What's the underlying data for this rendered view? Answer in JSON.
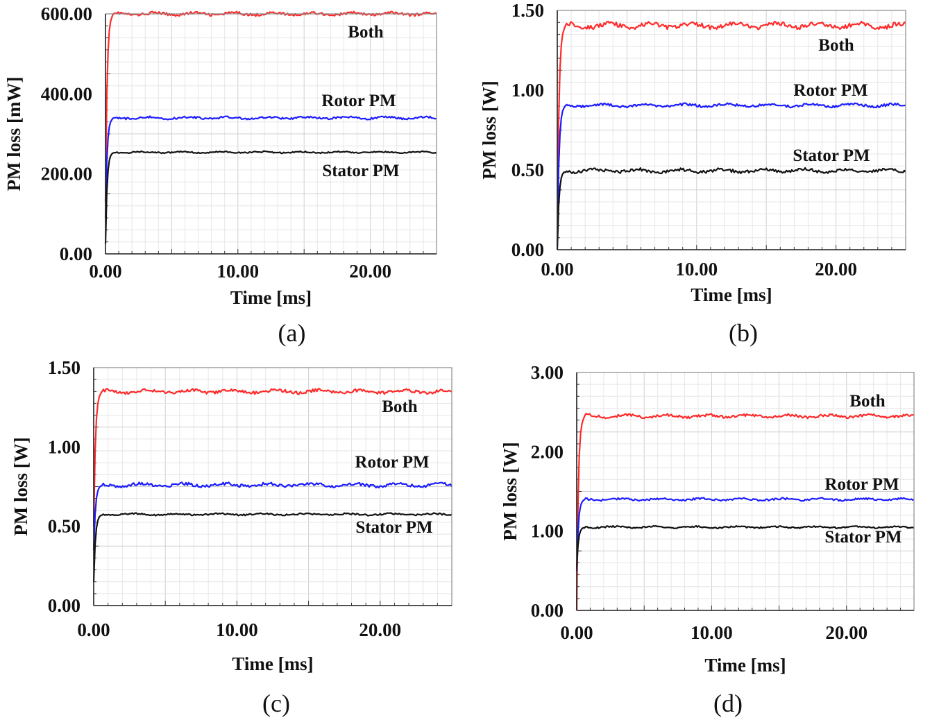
{
  "chart_data": [
    {
      "id": "a",
      "type": "line",
      "caption": "(a)",
      "xlabel": "Time [ms]",
      "ylabel": "PM loss [mW]",
      "xlim": [
        0,
        25
      ],
      "ylim": [
        0,
        600
      ],
      "xticks": [
        0,
        10,
        20
      ],
      "yticks": [
        0,
        200,
        400,
        600
      ],
      "grid": true,
      "series": [
        {
          "name": "Both",
          "color": "#ff2a2a",
          "steady": 600,
          "start": 130,
          "ripple": 4
        },
        {
          "name": "Rotor PM",
          "color": "#1c1cff",
          "steady": 340,
          "start": 90,
          "ripple": 3
        },
        {
          "name": "Stator PM",
          "color": "#111111",
          "steady": 254,
          "start": 25,
          "ripple": 2
        }
      ],
      "labels": [
        {
          "text": "Both",
          "series": "Both"
        },
        {
          "text": "Rotor PM",
          "series": "Rotor PM"
        },
        {
          "text": "Stator PM",
          "series": "Stator PM"
        }
      ]
    },
    {
      "id": "b",
      "type": "line",
      "caption": "(b)",
      "xlabel": "Time [ms]",
      "ylabel": "PM loss [W]",
      "xlim": [
        0,
        25
      ],
      "ylim": [
        0,
        1.5
      ],
      "xticks": [
        0,
        10,
        20
      ],
      "yticks": [
        0,
        0.5,
        1,
        1.5
      ],
      "grid": true,
      "series": [
        {
          "name": "Both",
          "color": "#ff2a2a",
          "steady": 1.405,
          "start": 0.05,
          "ripple": 0.018
        },
        {
          "name": "Rotor PM",
          "color": "#1c1cff",
          "steady": 0.905,
          "start": 0.02,
          "ripple": 0.01
        },
        {
          "name": "Stator PM",
          "color": "#111111",
          "steady": 0.495,
          "start": 0.0,
          "ripple": 0.012
        }
      ],
      "labels": [
        {
          "text": "Both",
          "series": "Both"
        },
        {
          "text": "Rotor PM",
          "series": "Rotor PM"
        },
        {
          "text": "Stator PM",
          "series": "Stator PM"
        }
      ]
    },
    {
      "id": "c",
      "type": "line",
      "caption": "(c)",
      "xlabel": "Time [ms]",
      "ylabel": "PM loss [W]",
      "xlim": [
        0,
        25
      ],
      "ylim": [
        0,
        1.5
      ],
      "xticks": [
        0,
        10,
        20
      ],
      "yticks": [
        0,
        0.5,
        1,
        1.5
      ],
      "grid": true,
      "series": [
        {
          "name": "Both",
          "color": "#ff2a2a",
          "steady": 1.35,
          "start": 0.5,
          "ripple": 0.012
        },
        {
          "name": "Rotor PM",
          "color": "#1c1cff",
          "steady": 0.76,
          "start": 0.35,
          "ripple": 0.012
        },
        {
          "name": "Stator PM",
          "color": "#111111",
          "steady": 0.575,
          "start": 0.15,
          "ripple": 0.006
        }
      ],
      "labels": [
        {
          "text": "Both",
          "series": "Both"
        },
        {
          "text": "Rotor PM",
          "series": "Rotor PM"
        },
        {
          "text": "Stator PM",
          "series": "Stator PM"
        }
      ]
    },
    {
      "id": "d",
      "type": "line",
      "caption": "(d)",
      "xlabel": "Time [ms]",
      "ylabel": "PM loss [W]",
      "xlim": [
        0,
        25
      ],
      "ylim": [
        0,
        3
      ],
      "xticks": [
        0,
        10,
        20
      ],
      "yticks": [
        0,
        1,
        2,
        3
      ],
      "grid": true,
      "series": [
        {
          "name": "Both",
          "color": "#ff2a2a",
          "steady": 2.45,
          "start": 0.0,
          "ripple": 0.02
        },
        {
          "name": "Rotor PM",
          "color": "#1c1cff",
          "steady": 1.4,
          "start": 0.5,
          "ripple": 0.015
        },
        {
          "name": "Stator PM",
          "color": "#111111",
          "steady": 1.05,
          "start": 0.55,
          "ripple": 0.012
        }
      ],
      "labels": [
        {
          "text": "Both",
          "series": "Both"
        },
        {
          "text": "Rotor PM",
          "series": "Rotor PM"
        },
        {
          "text": "Stator PM",
          "series": "Stator PM"
        }
      ]
    }
  ]
}
